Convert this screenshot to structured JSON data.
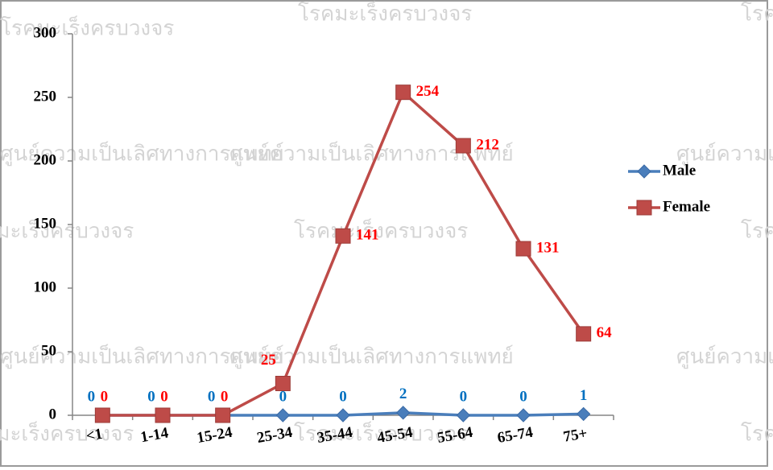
{
  "chart_data": {
    "type": "line",
    "categories": [
      "<1",
      "1-14",
      "15-24",
      "25-34",
      "35-44",
      "45-54",
      "55-64",
      "65-74",
      "75+"
    ],
    "series": [
      {
        "name": "Male",
        "color": "#4a7ebb",
        "label_color": "#0070c0",
        "marker": "diamond",
        "values": [
          0,
          0,
          0,
          0,
          0,
          2,
          0,
          0,
          1
        ]
      },
      {
        "name": "Female",
        "color": "#be4b48",
        "label_color": "#ff0000",
        "marker": "square",
        "values": [
          0,
          0,
          0,
          25,
          141,
          254,
          212,
          131,
          64
        ]
      }
    ],
    "ylim": [
      0,
      300
    ],
    "yticks": [
      0,
      50,
      100,
      150,
      200,
      250,
      300
    ],
    "grid": false,
    "legend": "right",
    "watermarks": [
      "โรคมะเร็งครบวงจร",
      "ศูนย์ความเป็นเลิศทางการแพทย์"
    ]
  }
}
